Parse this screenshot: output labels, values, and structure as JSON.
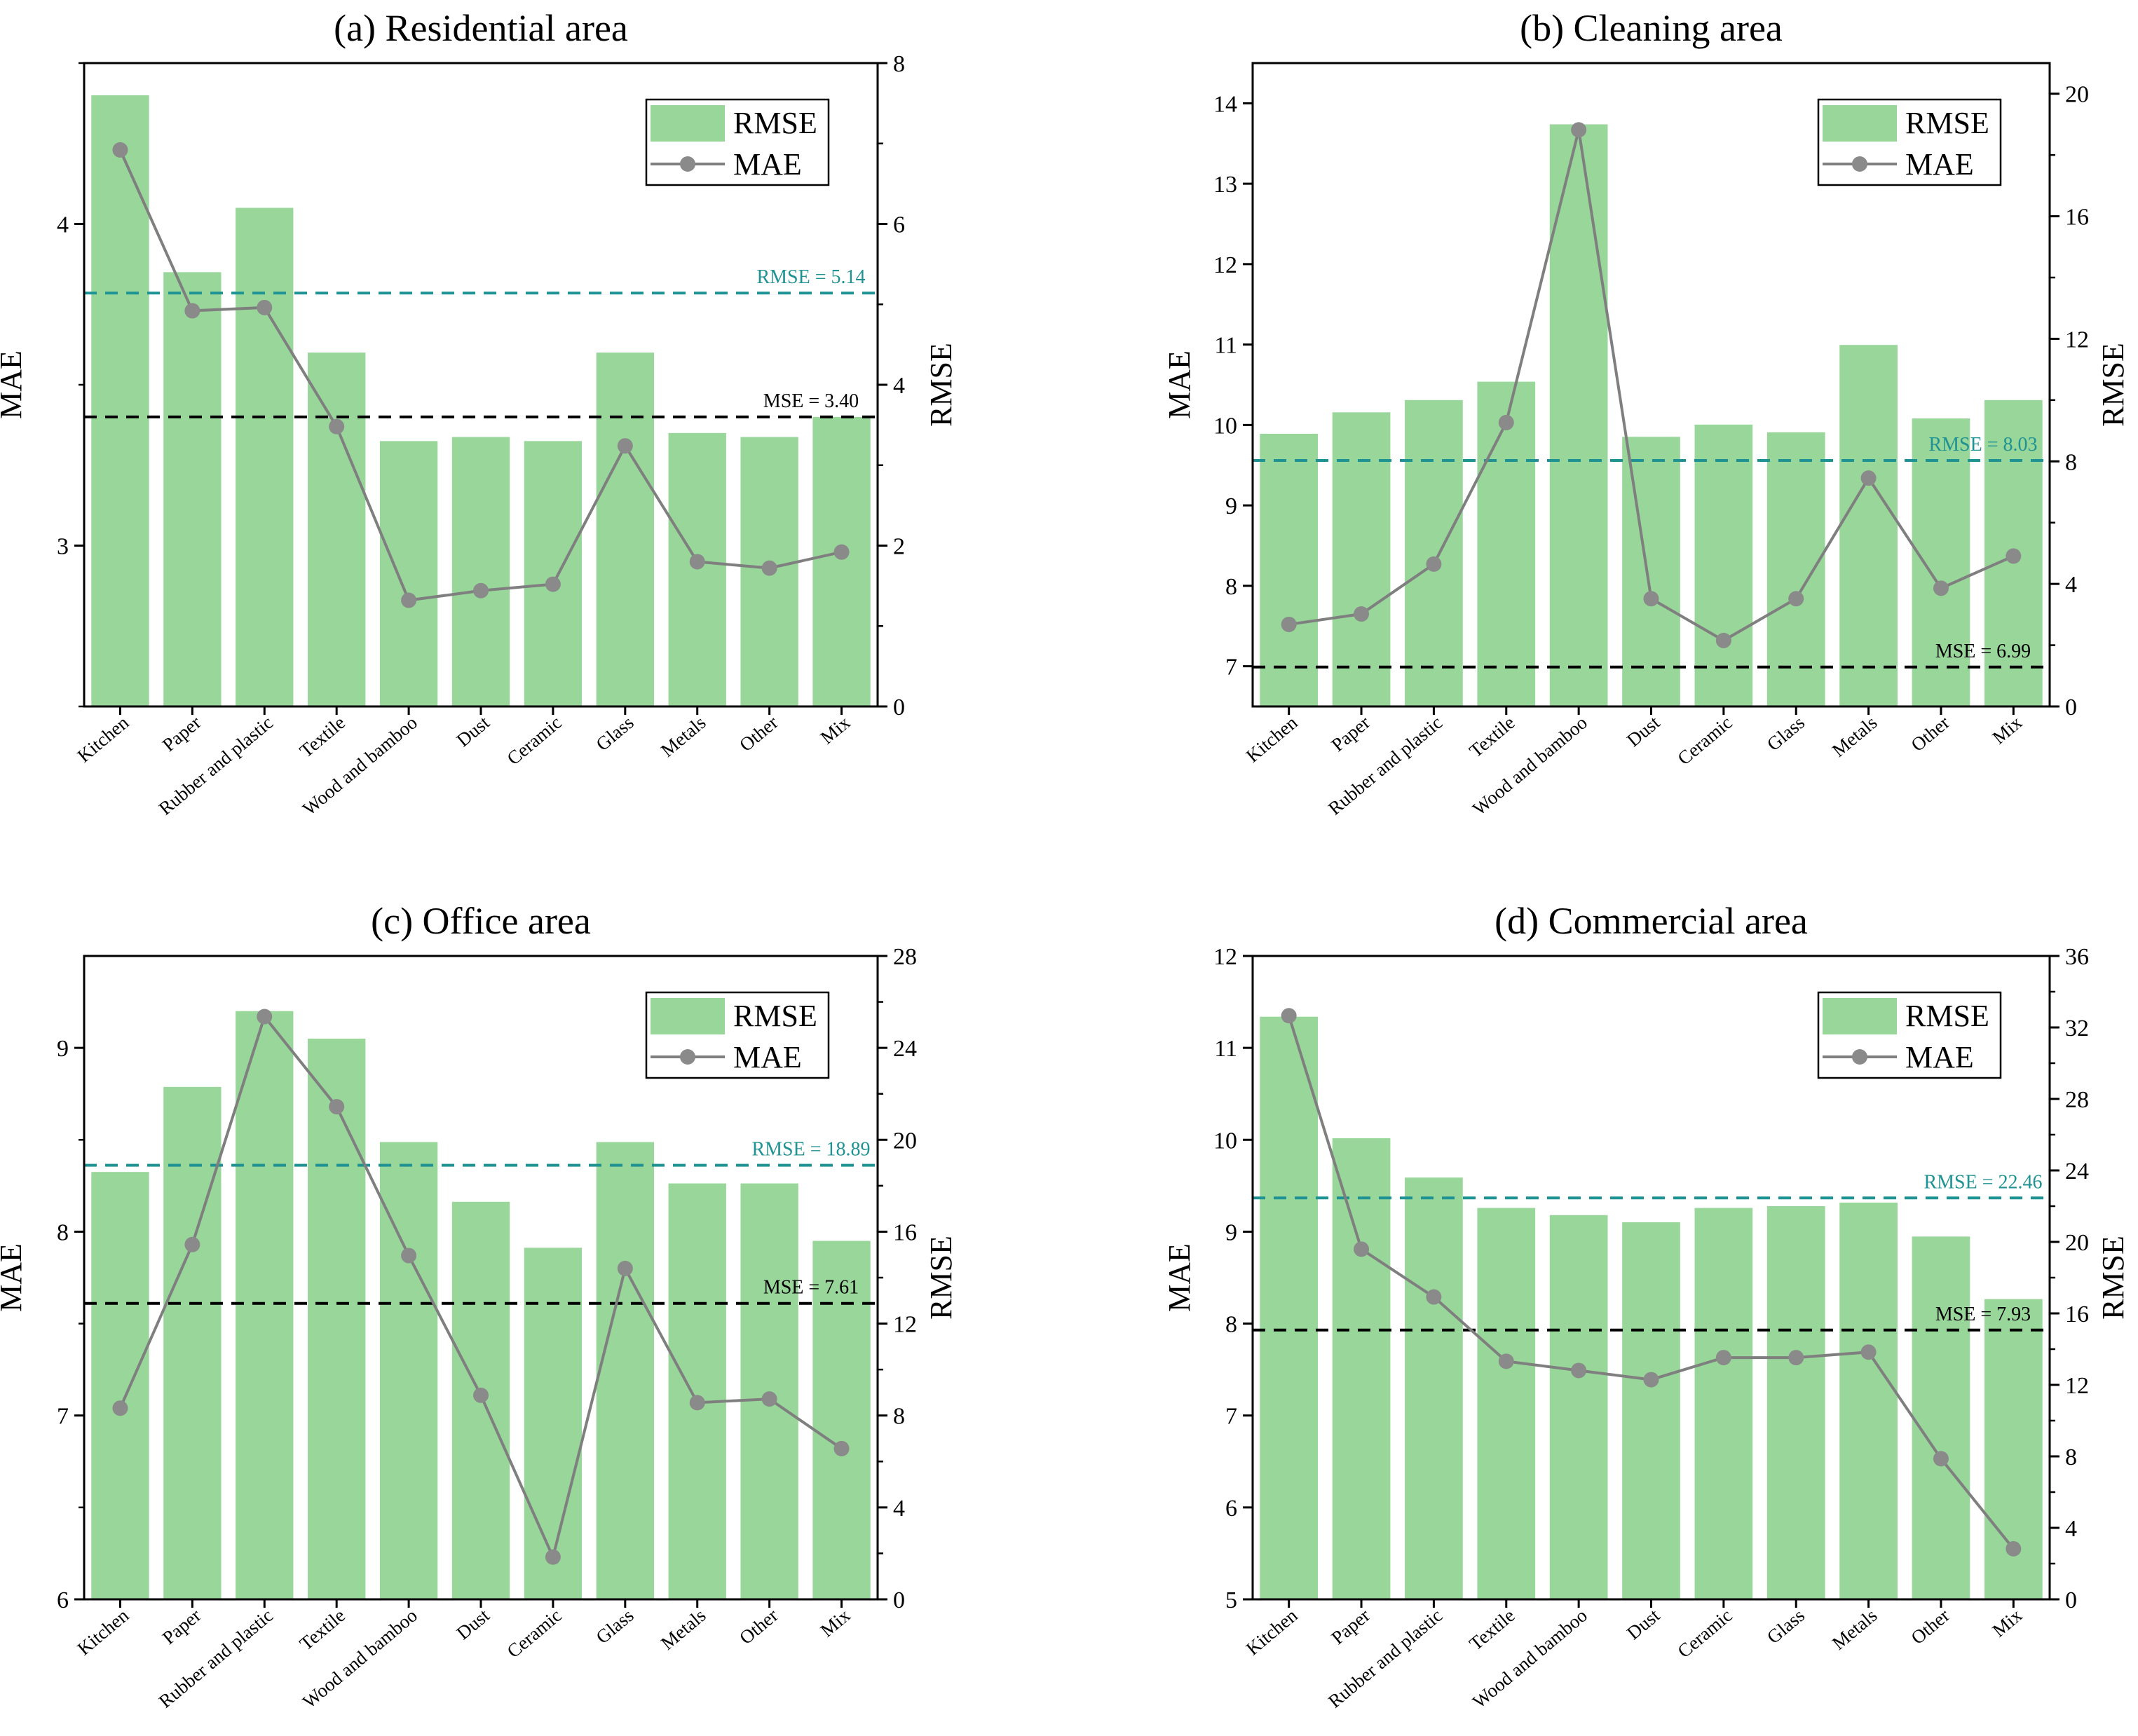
{
  "colors": {
    "bar": "#98d69a",
    "line": "#7f7f7f",
    "marker": "#8a8a8a",
    "rmse_ref": "#1f9293",
    "mse_ref": "#000000"
  },
  "legend": {
    "rmse_label": "RMSE",
    "mae_label": "MAE"
  },
  "chart_data": [
    {
      "type": "bar+line",
      "title": "(a) Residential area",
      "categories": [
        "Kitchen",
        "Paper",
        "Rubber and plastic",
        "Textile",
        "Wood and bamboo",
        "Dust",
        "Ceramic",
        "Glass",
        "Metals",
        "Other",
        "Mix"
      ],
      "series": [
        {
          "name": "RMSE",
          "axis": "right",
          "kind": "bar",
          "values": [
            7.6,
            5.4,
            6.2,
            4.4,
            3.3,
            3.35,
            3.3,
            4.4,
            3.4,
            3.35,
            3.6
          ]
        },
        {
          "name": "MAE",
          "axis": "left",
          "kind": "line",
          "values": [
            4.23,
            3.73,
            3.74,
            3.37,
            2.83,
            2.86,
            2.88,
            3.31,
            2.95,
            2.93,
            2.98
          ]
        }
      ],
      "reference_lines": [
        {
          "label": "RMSE = 5.14",
          "axis": "right",
          "value": 5.14,
          "style": "rmse"
        },
        {
          "label": "MSE = 3.40",
          "axis": "left",
          "value": 3.4,
          "style": "mse"
        }
      ],
      "ylabel_left": "MAE",
      "ylabel_right": "RMSE",
      "ylim_left": [
        2.5,
        4.5
      ],
      "ylim_right": [
        0,
        8.0
      ],
      "yticks_left": [
        3,
        4
      ],
      "yticks_left_labels": [
        "3",
        "4"
      ],
      "yticks_left_minor": [
        2.5,
        3.5,
        4.5
      ],
      "yticks_right": [
        0,
        2,
        4,
        6,
        8
      ],
      "yticks_right_labels": [
        "0",
        "2",
        "4",
        "6",
        "8"
      ],
      "yticks_right_minor": [
        1,
        3,
        5,
        7
      ],
      "legend_position": "top-right"
    },
    {
      "type": "bar+line",
      "title": "(b) Cleaning area",
      "categories": [
        "Kitchen",
        "Paper",
        "Rubber and plastic",
        "Textile",
        "Wood and bamboo",
        "Dust",
        "Ceramic",
        "Glass",
        "Metals",
        "Other",
        "Mix"
      ],
      "series": [
        {
          "name": "RMSE",
          "axis": "right",
          "kind": "bar",
          "values": [
            8.9,
            9.6,
            10.0,
            10.6,
            19.0,
            8.8,
            9.2,
            8.95,
            11.8,
            9.4,
            10.0
          ]
        },
        {
          "name": "MAE",
          "axis": "left",
          "kind": "line",
          "values": [
            7.52,
            7.65,
            8.27,
            10.03,
            13.67,
            7.84,
            7.32,
            7.84,
            9.34,
            7.97,
            8.37
          ]
        }
      ],
      "reference_lines": [
        {
          "label": "RMSE = 8.03",
          "axis": "right",
          "value": 8.03,
          "style": "rmse"
        },
        {
          "label": "MSE = 6.99",
          "axis": "left",
          "value": 6.99,
          "style": "mse"
        }
      ],
      "ylabel_left": "MAE",
      "ylabel_right": "RMSE",
      "ylim_left": [
        6.5,
        14.5
      ],
      "ylim_right": [
        0,
        21.0
      ],
      "yticks_left": [
        7,
        8,
        9,
        10,
        11,
        12,
        13,
        14
      ],
      "yticks_left_labels": [
        "7",
        "8",
        "9",
        "10",
        "11",
        "12",
        "13",
        "14"
      ],
      "yticks_left_minor": [],
      "yticks_right": [
        0,
        4,
        8,
        12,
        16,
        20
      ],
      "yticks_right_labels": [
        "0",
        "4",
        "8",
        "12",
        "16",
        "20"
      ],
      "yticks_right_minor": [
        2,
        6,
        10,
        14,
        18
      ],
      "legend_position": "top-right"
    },
    {
      "type": "bar+line",
      "title": "(c) Office area",
      "categories": [
        "Kitchen",
        "Paper",
        "Rubber and plastic",
        "Textile",
        "Wood and bamboo",
        "Dust",
        "Ceramic",
        "Glass",
        "Metals",
        "Other",
        "Mix"
      ],
      "series": [
        {
          "name": "RMSE",
          "axis": "right",
          "kind": "bar",
          "values": [
            18.6,
            22.3,
            25.6,
            24.4,
            19.9,
            17.3,
            15.3,
            19.9,
            18.1,
            18.1,
            15.6
          ]
        },
        {
          "name": "MAE",
          "axis": "left",
          "kind": "line",
          "values": [
            7.04,
            7.93,
            9.17,
            8.68,
            7.87,
            7.11,
            6.23,
            7.8,
            7.07,
            7.09,
            6.82
          ]
        }
      ],
      "reference_lines": [
        {
          "label": "RMSE = 18.89",
          "axis": "right",
          "value": 18.89,
          "style": "rmse"
        },
        {
          "label": "MSE = 7.61",
          "axis": "left",
          "value": 7.61,
          "style": "mse"
        }
      ],
      "ylabel_left": "MAE",
      "ylabel_right": "RMSE",
      "ylim_left": [
        6.0,
        9.5
      ],
      "ylim_right": [
        0,
        28.0
      ],
      "yticks_left": [
        6,
        7,
        8,
        9
      ],
      "yticks_left_labels": [
        "6",
        "7",
        "8",
        "9"
      ],
      "yticks_left_minor": [
        6.5,
        7.5,
        8.5
      ],
      "yticks_right": [
        0,
        4,
        8,
        12,
        16,
        20,
        24,
        28
      ],
      "yticks_right_labels": [
        "0",
        "4",
        "8",
        "12",
        "16",
        "20",
        "24",
        "28"
      ],
      "yticks_right_minor": [
        2,
        6,
        10,
        14,
        18,
        22,
        26
      ],
      "legend_position": "top-right"
    },
    {
      "type": "bar+line",
      "title": "(d) Commercial area",
      "categories": [
        "Kitchen",
        "Paper",
        "Rubber and plastic",
        "Textile",
        "Wood and bamboo",
        "Dust",
        "Ceramic",
        "Glass",
        "Metals",
        "Other",
        "Mix"
      ],
      "series": [
        {
          "name": "RMSE",
          "axis": "right",
          "kind": "bar",
          "values": [
            32.6,
            25.8,
            23.6,
            21.9,
            21.5,
            21.1,
            21.9,
            22.0,
            22.2,
            20.3,
            16.8
          ]
        },
        {
          "name": "MAE",
          "axis": "left",
          "kind": "line",
          "values": [
            11.35,
            8.81,
            8.29,
            7.59,
            7.49,
            7.39,
            7.63,
            7.63,
            7.69,
            6.53,
            5.55
          ]
        }
      ],
      "reference_lines": [
        {
          "label": "RMSE = 22.46",
          "axis": "right",
          "value": 22.46,
          "style": "rmse"
        },
        {
          "label": "MSE = 7.93",
          "axis": "left",
          "value": 7.93,
          "style": "mse"
        }
      ],
      "ylabel_left": "MAE",
      "ylabel_right": "RMSE",
      "ylim_left": [
        5.0,
        12.0
      ],
      "ylim_right": [
        0,
        36.0
      ],
      "yticks_left": [
        5,
        6,
        7,
        8,
        9,
        10,
        11,
        12
      ],
      "yticks_left_labels": [
        "5",
        "6",
        "7",
        "8",
        "9",
        "10",
        "11",
        "12"
      ],
      "yticks_left_minor": [],
      "yticks_right": [
        0,
        4,
        8,
        12,
        16,
        20,
        24,
        28,
        32,
        36
      ],
      "yticks_right_labels": [
        "0",
        "4",
        "8",
        "12",
        "16",
        "20",
        "24",
        "28",
        "32",
        "36"
      ],
      "yticks_right_minor": [
        2,
        6,
        10,
        14,
        18,
        22,
        26,
        30,
        34
      ],
      "legend_position": "top-right"
    }
  ]
}
